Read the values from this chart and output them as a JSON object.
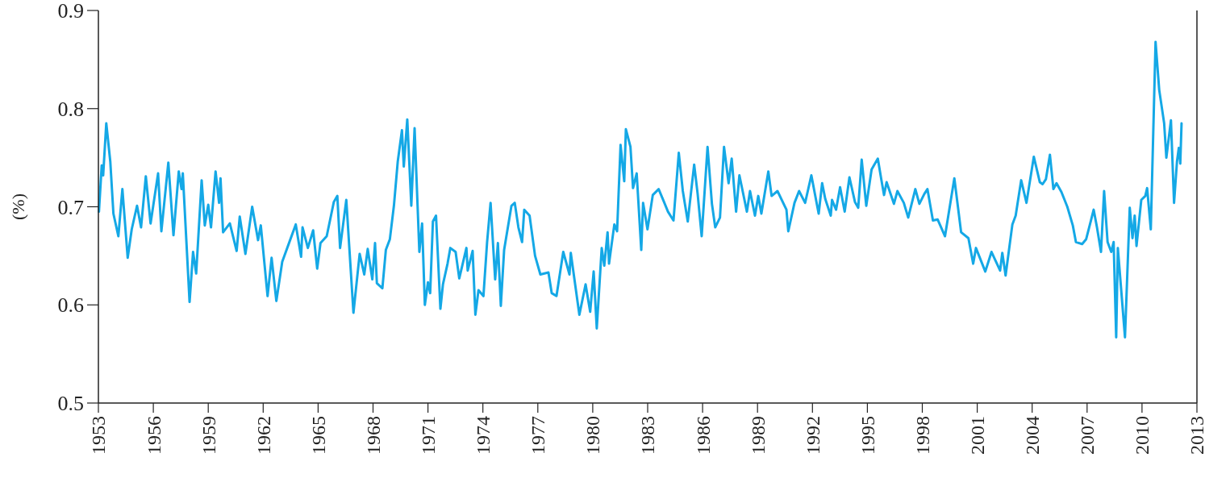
{
  "chart_data": {
    "type": "line",
    "ylabel": "(%)",
    "xlim": [
      1953,
      2013
    ],
    "xticks": [
      1953,
      1956,
      1959,
      1962,
      1965,
      1968,
      1971,
      1974,
      1977,
      1980,
      1983,
      1986,
      1989,
      1992,
      1995,
      1998,
      2001,
      2004,
      2007,
      2010,
      2013
    ],
    "ylim": [
      0.5,
      0.9
    ],
    "yticks": [
      0.5,
      0.6,
      0.7,
      0.8,
      0.9
    ],
    "grid": false,
    "marker": "none",
    "line_style": "solid",
    "series": [
      {
        "color": "#14a8e6",
        "x": [
          1953.03,
          1953.18,
          1953.26,
          1953.43,
          1953.65,
          1953.82,
          1954.09,
          1954.31,
          1954.6,
          1954.82,
          1955.11,
          1955.33,
          1955.59,
          1955.85,
          1956.26,
          1956.44,
          1956.82,
          1957.1,
          1957.39,
          1957.54,
          1957.61,
          1957.98,
          1958.17,
          1958.34,
          1958.64,
          1958.81,
          1959.0,
          1959.15,
          1959.4,
          1959.59,
          1959.67,
          1959.81,
          1960.18,
          1960.55,
          1960.72,
          1961.03,
          1961.4,
          1961.72,
          1961.87,
          1962.24,
          1962.46,
          1962.72,
          1963.04,
          1963.45,
          1963.78,
          1964.07,
          1964.15,
          1964.44,
          1964.73,
          1964.95,
          1965.13,
          1965.47,
          1965.86,
          1966.05,
          1966.2,
          1966.54,
          1966.93,
          1967.27,
          1967.52,
          1967.71,
          1967.96,
          1968.11,
          1968.21,
          1968.51,
          1968.7,
          1968.92,
          1969.14,
          1969.35,
          1969.58,
          1969.68,
          1969.87,
          1970.09,
          1970.27,
          1970.53,
          1970.68,
          1970.83,
          1971.0,
          1971.12,
          1971.27,
          1971.44,
          1971.68,
          1971.82,
          1972.07,
          1972.22,
          1972.51,
          1972.71,
          1973.1,
          1973.17,
          1973.44,
          1973.59,
          1973.76,
          1974.03,
          1974.23,
          1974.42,
          1974.67,
          1974.82,
          1974.98,
          1975.16,
          1975.56,
          1975.74,
          1975.94,
          1976.14,
          1976.26,
          1976.55,
          1976.85,
          1977.14,
          1977.58,
          1977.76,
          1978.02,
          1978.39,
          1978.73,
          1978.8,
          1979.27,
          1979.61,
          1979.86,
          1980.05,
          1980.22,
          1980.49,
          1980.63,
          1980.81,
          1980.89,
          1981.18,
          1981.33,
          1981.52,
          1981.72,
          1981.81,
          1982.06,
          1982.2,
          1982.4,
          1982.65,
          1982.75,
          1982.99,
          1983.28,
          1983.6,
          1983.89,
          1984.11,
          1984.41,
          1984.7,
          1984.92,
          1985.19,
          1985.54,
          1985.73,
          1985.95,
          1986.27,
          1986.51,
          1986.69,
          1986.95,
          1987.17,
          1987.42,
          1987.59,
          1987.83,
          1988.01,
          1988.42,
          1988.59,
          1988.86,
          1989.04,
          1989.21,
          1989.59,
          1989.77,
          1990.09,
          1990.58,
          1990.68,
          1991.02,
          1991.27,
          1991.6,
          1991.94,
          1992.34,
          1992.53,
          1992.7,
          1993.0,
          1993.07,
          1993.29,
          1993.51,
          1993.76,
          1994.02,
          1994.32,
          1994.5,
          1994.69,
          1994.94,
          1995.23,
          1995.57,
          1995.76,
          1995.91,
          1996.05,
          1996.45,
          1996.64,
          1996.99,
          1997.23,
          1997.62,
          1997.84,
          1998.11,
          1998.28,
          1998.58,
          1998.84,
          1999.24,
          1999.75,
          2000.12,
          2000.52,
          2000.78,
          2000.93,
          2001.44,
          2001.78,
          2002.25,
          2002.37,
          2002.55,
          2002.92,
          2003.1,
          2003.4,
          2003.69,
          2004.09,
          2004.42,
          2004.57,
          2004.75,
          2004.97,
          2005.16,
          2005.33,
          2005.6,
          2005.92,
          2006.22,
          2006.39,
          2006.73,
          2006.95,
          2007.21,
          2007.36,
          2007.54,
          2007.76,
          2007.93,
          2008.12,
          2008.32,
          2008.45,
          2008.59,
          2008.68,
          2009.07,
          2009.33,
          2009.48,
          2009.6,
          2009.7,
          2009.96,
          2010.18,
          2010.28,
          2010.48,
          2010.74,
          2010.94,
          2011.21,
          2011.33,
          2011.58,
          2011.75,
          2011.91,
          2012.01,
          2012.09,
          2012.16
        ],
        "values": [
          0.695,
          0.742,
          0.732,
          0.785,
          0.746,
          0.693,
          0.67,
          0.718,
          0.648,
          0.677,
          0.701,
          0.679,
          0.731,
          0.683,
          0.734,
          0.675,
          0.745,
          0.671,
          0.736,
          0.718,
          0.734,
          0.603,
          0.654,
          0.632,
          0.727,
          0.681,
          0.702,
          0.679,
          0.736,
          0.704,
          0.729,
          0.674,
          0.683,
          0.655,
          0.69,
          0.652,
          0.7,
          0.666,
          0.681,
          0.609,
          0.648,
          0.604,
          0.644,
          0.665,
          0.682,
          0.649,
          0.679,
          0.658,
          0.676,
          0.637,
          0.663,
          0.67,
          0.705,
          0.711,
          0.658,
          0.707,
          0.592,
          0.652,
          0.631,
          0.657,
          0.626,
          0.663,
          0.622,
          0.617,
          0.656,
          0.667,
          0.701,
          0.746,
          0.778,
          0.741,
          0.789,
          0.701,
          0.78,
          0.654,
          0.683,
          0.6,
          0.623,
          0.612,
          0.685,
          0.691,
          0.596,
          0.621,
          0.642,
          0.658,
          0.654,
          0.627,
          0.658,
          0.635,
          0.655,
          0.59,
          0.615,
          0.609,
          0.664,
          0.704,
          0.626,
          0.663,
          0.599,
          0.656,
          0.701,
          0.704,
          0.679,
          0.664,
          0.697,
          0.691,
          0.65,
          0.631,
          0.633,
          0.612,
          0.609,
          0.654,
          0.631,
          0.653,
          0.59,
          0.621,
          0.593,
          0.634,
          0.576,
          0.658,
          0.64,
          0.674,
          0.642,
          0.682,
          0.675,
          0.763,
          0.726,
          0.779,
          0.761,
          0.719,
          0.734,
          0.656,
          0.704,
          0.677,
          0.712,
          0.718,
          0.705,
          0.695,
          0.686,
          0.755,
          0.716,
          0.685,
          0.743,
          0.713,
          0.67,
          0.761,
          0.703,
          0.679,
          0.689,
          0.761,
          0.724,
          0.749,
          0.695,
          0.732,
          0.695,
          0.716,
          0.691,
          0.711,
          0.693,
          0.736,
          0.711,
          0.716,
          0.697,
          0.675,
          0.704,
          0.716,
          0.704,
          0.732,
          0.693,
          0.724,
          0.708,
          0.691,
          0.707,
          0.697,
          0.72,
          0.695,
          0.73,
          0.705,
          0.699,
          0.748,
          0.701,
          0.738,
          0.749,
          0.728,
          0.712,
          0.725,
          0.703,
          0.716,
          0.704,
          0.689,
          0.718,
          0.703,
          0.713,
          0.718,
          0.686,
          0.687,
          0.67,
          0.729,
          0.674,
          0.668,
          0.642,
          0.658,
          0.634,
          0.654,
          0.635,
          0.653,
          0.63,
          0.682,
          0.691,
          0.727,
          0.704,
          0.751,
          0.725,
          0.723,
          0.728,
          0.753,
          0.718,
          0.724,
          0.715,
          0.7,
          0.681,
          0.664,
          0.662,
          0.667,
          0.686,
          0.697,
          0.679,
          0.654,
          0.716,
          0.664,
          0.654,
          0.664,
          0.567,
          0.658,
          0.567,
          0.699,
          0.668,
          0.691,
          0.66,
          0.707,
          0.711,
          0.719,
          0.677,
          0.868,
          0.819,
          0.785,
          0.75,
          0.788,
          0.704,
          0.746,
          0.76,
          0.744,
          0.785
        ]
      }
    ]
  }
}
